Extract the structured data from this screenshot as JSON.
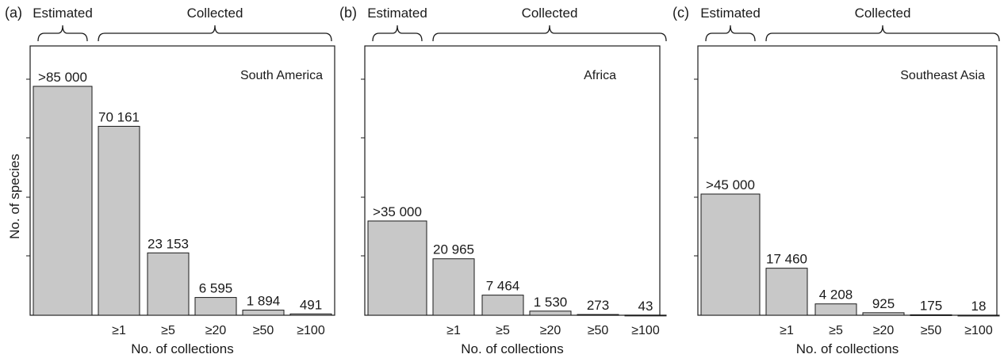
{
  "ylabel": "No. of species",
  "chart_data": [
    {
      "type": "bar",
      "panel_label": "(a)",
      "region": "South America",
      "group_labels": {
        "estimated": "Estimated",
        "collected": "Collected"
      },
      "xlabel": "No. of collections",
      "ylabel": "No. of species",
      "categories": [
        "",
        "≥1",
        "≥5",
        "≥20",
        "≥50",
        "≥100"
      ],
      "values": [
        85000,
        70161,
        23153,
        6595,
        1894,
        491
      ],
      "value_labels": [
        ">85 000",
        "70 161",
        "23 153",
        "6 595",
        "1 894",
        "491"
      ],
      "ylim": [
        0,
        100000
      ]
    },
    {
      "type": "bar",
      "panel_label": "(b)",
      "region": "Africa",
      "group_labels": {
        "estimated": "Estimated",
        "collected": "Collected"
      },
      "xlabel": "No. of collections",
      "ylabel": "",
      "categories": [
        "",
        "≥1",
        "≥5",
        "≥20",
        "≥50",
        "≥100"
      ],
      "values": [
        35000,
        20965,
        7464,
        1530,
        273,
        43
      ],
      "value_labels": [
        ">35 000",
        "20 965",
        "7 464",
        "1 530",
        "273",
        "43"
      ],
      "ylim": [
        0,
        100000
      ]
    },
    {
      "type": "bar",
      "panel_label": "(c)",
      "region": "Southeast Asia",
      "group_labels": {
        "estimated": "Estimated",
        "collected": "Collected"
      },
      "xlabel": "No. of collections",
      "ylabel": "",
      "categories": [
        "",
        "≥1",
        "≥5",
        "≥20",
        "≥50",
        "≥100"
      ],
      "values": [
        45000,
        17460,
        4208,
        925,
        175,
        18
      ],
      "value_labels": [
        ">45 000",
        "17 460",
        "4 208",
        "925",
        "175",
        "18"
      ],
      "ylim": [
        0,
        100000
      ]
    }
  ],
  "colors": {
    "bar_fill": "#c8c8c8",
    "bar_stroke": "#1a1a1a",
    "axis": "#1a1a1a"
  }
}
